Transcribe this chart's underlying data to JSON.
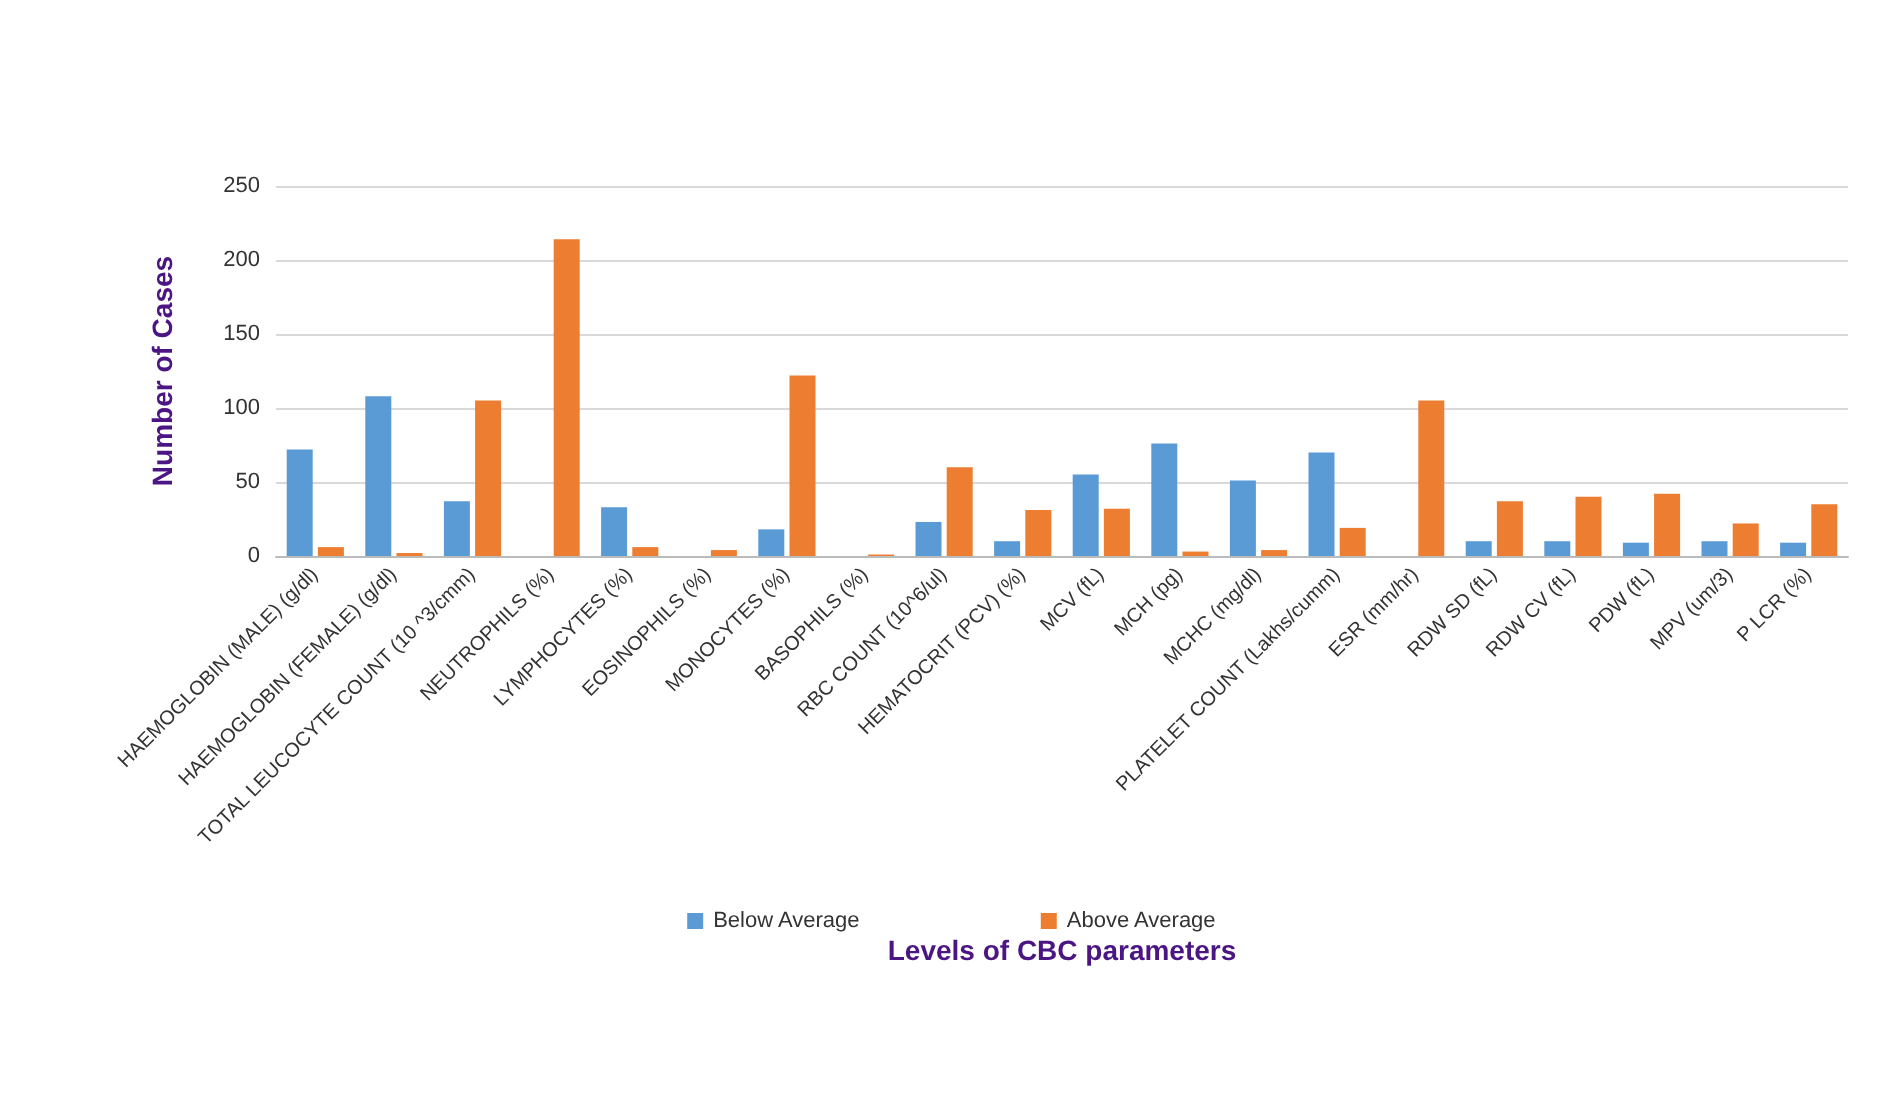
{
  "chart_data": {
    "type": "bar",
    "xlabel": "Levels of CBC parameters",
    "ylabel": "Number of Cases",
    "categories": [
      "HAEMOGLOBIN (MALE) (g/dl)",
      "HAEMOGLOBIN (FEMALE) (g/dl)",
      "TOTAL LEUCOCYTE COUNT (10 ^3/cmm)",
      "NEUTROPHILS (%)",
      "LYMPHOCYTES (%)",
      "EOSINOPHILS (%)",
      "MONOCYTES (%)",
      "BASOPHILS (%)",
      "RBC COUNT (10^6/ul)",
      "HEMATOCRIT (PCV) (%)",
      "MCV (fL)",
      "MCH (pg)",
      "MCHC (mg/dl)",
      "PLATELET COUNT (Lakhs/cumm)",
      "ESR (mm/hr)",
      "RDW SD (fL)",
      "RDW CV (fL)",
      "PDW (fL)",
      "MPV (um/3)",
      "P LCR (%)"
    ],
    "series": [
      {
        "name": "Below Average",
        "color": "#5b9bd5",
        "values": [
          72,
          108,
          37,
          0,
          33,
          0,
          18,
          0,
          23,
          10,
          55,
          76,
          51,
          70,
          0,
          10,
          10,
          9,
          10,
          9
        ]
      },
      {
        "name": "Above Average",
        "color": "#ed7d31",
        "values": [
          6,
          2,
          105,
          214,
          6,
          4,
          122,
          1,
          60,
          31,
          32,
          3,
          4,
          19,
          105,
          37,
          40,
          42,
          22,
          35
        ]
      }
    ],
    "ylim": [
      0,
      250
    ],
    "yticks": [
      0,
      50,
      100,
      150,
      200,
      250
    ],
    "grid": "y",
    "legend": "bottom"
  }
}
